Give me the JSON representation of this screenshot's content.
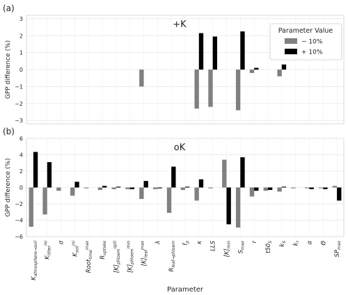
{
  "chart_data": [
    {
      "type": "bar",
      "panel_label": "(a)",
      "title": "+K",
      "ylabel": "GPP difference (%)",
      "xlabel": "",
      "ylim": [
        -3.2,
        3.2
      ],
      "yticks": [
        -3,
        -2,
        -1,
        0,
        1,
        2,
        3
      ],
      "grid": true,
      "legend": {
        "title": "Parameter Value",
        "placement": "top-right",
        "entries": [
          "− 10%",
          "+ 10%"
        ]
      },
      "categories": [
        "K_atmosphere→soil",
        "K_litter^ini",
        "σ",
        "K_soil^ini",
        "Root_time^max",
        "R_uptake",
        "[K]_phloem^opti",
        "[K]_phloem^min",
        "[K]_leaf^max",
        "λ",
        "R_leaf→phloem",
        "f_p",
        "κ",
        "LLS",
        "[K]_min",
        "S_max",
        "r",
        "t50_S",
        "k_S",
        "k_r",
        "α",
        "Θ",
        "SP_max"
      ],
      "series": [
        {
          "name": "− 10%",
          "color": "#808080",
          "values": [
            0,
            0,
            0,
            0,
            0,
            0,
            0,
            0,
            -1.0,
            0,
            0,
            0,
            -2.3,
            -2.2,
            0,
            -2.4,
            -0.2,
            0,
            -0.4,
            0,
            0,
            0,
            0
          ]
        },
        {
          "name": "+ 10%",
          "color": "#000000",
          "values": [
            0,
            0,
            0,
            0,
            0,
            0,
            0,
            0,
            0,
            0,
            0,
            0,
            2.15,
            1.95,
            0,
            2.25,
            0.1,
            0,
            0.3,
            0,
            0,
            0,
            0
          ]
        }
      ]
    },
    {
      "type": "bar",
      "panel_label": "(b)",
      "title": "oK",
      "ylabel": "GPP difference (%)",
      "xlabel": "Parameter",
      "ylim": [
        -6,
        6
      ],
      "yticks": [
        -6,
        -4,
        -2,
        0,
        2,
        4,
        6
      ],
      "grid": true,
      "categories": [
        "K_atmosphere→soil",
        "K_litter^ini",
        "σ",
        "K_soil^ini",
        "Root_time^max",
        "R_uptake",
        "[K]_phloem^opti",
        "[K]_phloem^min",
        "[K]_leaf^max",
        "λ",
        "R_leaf→phloem",
        "f_p",
        "κ",
        "LLS",
        "[K]_min",
        "S_max",
        "r",
        "t50_S",
        "k_S",
        "k_r",
        "α",
        "Θ",
        "SP_max"
      ],
      "series": [
        {
          "name": "− 10%",
          "color": "#808080",
          "values": [
            -4.8,
            -3.3,
            -0.4,
            -1.0,
            -0.1,
            -0.3,
            -0.2,
            -0.2,
            -1.4,
            -0.2,
            -3.1,
            -0.3,
            -1.6,
            -0.1,
            3.4,
            -4.9,
            -1.1,
            -0.4,
            -0.5,
            -0.1,
            -0.1,
            -0.1,
            0.2
          ]
        },
        {
          "name": "+ 10%",
          "color": "#000000",
          "values": [
            4.35,
            3.1,
            0,
            0.7,
            0,
            0.2,
            0.1,
            -0.2,
            0.8,
            -0.1,
            2.55,
            0.1,
            1.0,
            0,
            -4.5,
            3.7,
            -0.4,
            -0.3,
            0.1,
            0,
            -0.2,
            -0.2,
            -1.6
          ]
        }
      ]
    }
  ]
}
